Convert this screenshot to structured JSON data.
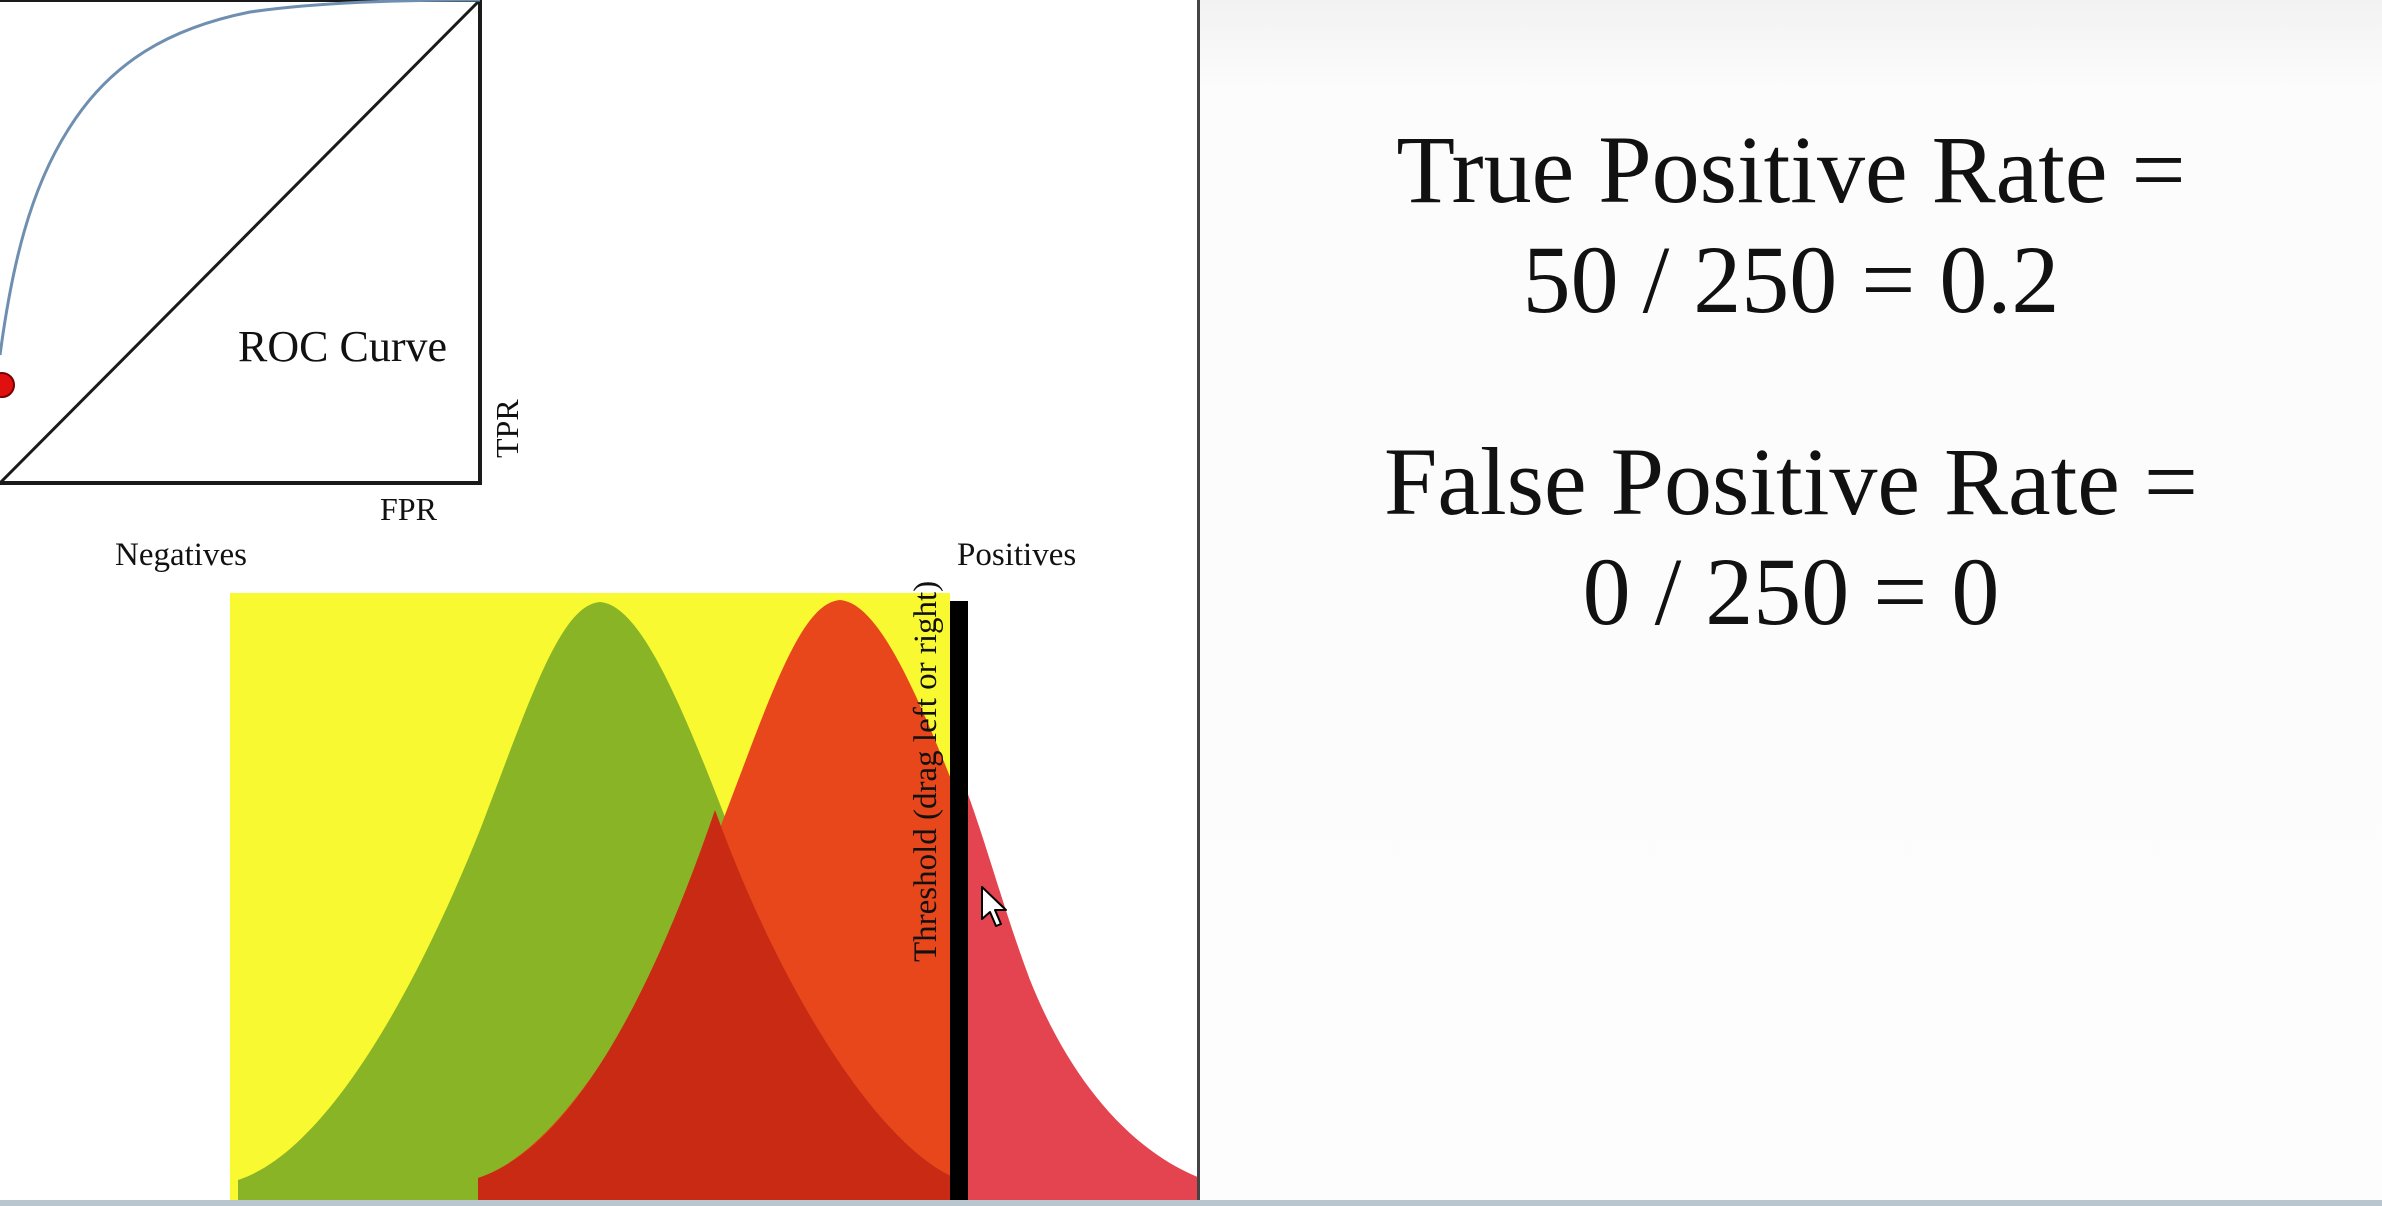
{
  "roc": {
    "title": "ROC Curve",
    "x_label": "FPR",
    "y_label": "TPR",
    "point": {
      "fpr": 0,
      "tpr": 0.2
    }
  },
  "distributions": {
    "negatives_label": "Negatives",
    "positives_label": "Positives",
    "threshold_label": "Threshold (drag left or right)"
  },
  "rates": {
    "tpr_heading": "True Positive Rate =",
    "tpr_formula": "50 / 250 = 0.2",
    "fpr_heading": "False Positive Rate =",
    "fpr_formula": "0 / 250 = 0"
  },
  "colors": {
    "background_yellow": "#f9f931",
    "negatives_green": "#88b425",
    "overlap_red": "#c82a14",
    "positives_orange": "#e8461b",
    "right_tail_red": "#e3444f",
    "roc_curve": "#6f8fb0",
    "roc_point": "#e01010"
  },
  "icons": {
    "cursor": "arrow-cursor-icon"
  }
}
